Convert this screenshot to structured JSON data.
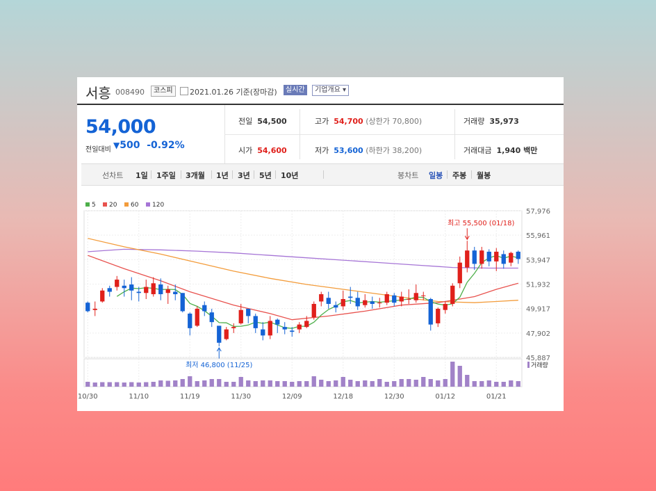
{
  "header": {
    "name": "서흥",
    "code": "008490",
    "market": "코스피",
    "date": "2021.01.26 기준(장마감)",
    "realtime": "실시간",
    "corp_info": "기업개요 ▾"
  },
  "price": {
    "current": "54,000",
    "change_label": "전일대비",
    "change_value": "500",
    "change_pct": "-0.92%"
  },
  "stats": {
    "prev_label": "전일",
    "prev": "54,500",
    "high_label": "고가",
    "high": "54,700",
    "upper_limit": "(상한가 70,800)",
    "volume_label": "거래량",
    "volume": "35,973",
    "open_label": "시가",
    "open": "54,600",
    "low_label": "저가",
    "low": "53,600",
    "lower_limit": "(하한가 38,200)",
    "amount_label": "거래대금",
    "amount": "1,940 백만"
  },
  "tabs": {
    "line_label": "선차트",
    "line_tabs": [
      "1일",
      "1주일",
      "3개월",
      "1년",
      "3년",
      "5년",
      "10년"
    ],
    "candle_label": "봉차트",
    "candle_tabs": [
      "일봉",
      "주봉",
      "월봉"
    ],
    "active_candle": "일봉"
  },
  "colors": {
    "up": "#e0201b",
    "down": "#1463d5",
    "ma5": "#4daf4a",
    "ma20": "#e8524e",
    "ma60": "#f39c3b",
    "ma120": "#a675d6",
    "volume": "#a182c8"
  },
  "chart_data": {
    "type": "candlestick",
    "legend": [
      "5",
      "20",
      "60",
      "120"
    ],
    "y_ticks": [
      "57,976",
      "55,961",
      "53,947",
      "51,932",
      "49,917",
      "47,902",
      "45,887"
    ],
    "ylim": [
      45887,
      57976
    ],
    "x_ticks": [
      {
        "label": "10/30",
        "index": 0
      },
      {
        "label": "11/10",
        "index": 7
      },
      {
        "label": "11/19",
        "index": 14
      },
      {
        "label": "11/30",
        "index": 21
      },
      {
        "label": "12/09",
        "index": 28
      },
      {
        "label": "12/18",
        "index": 35
      },
      {
        "label": "12/30",
        "index": 42
      },
      {
        "label": "01/12",
        "index": 49
      },
      {
        "label": "01/21",
        "index": 56
      }
    ],
    "candles": [
      [
        50400,
        49700,
        50500,
        49600
      ],
      [
        49800,
        49900,
        50500,
        49300
      ],
      [
        50500,
        51400,
        51600,
        50400
      ],
      [
        51600,
        51300,
        51800,
        50900
      ],
      [
        51700,
        52300,
        52600,
        51400
      ],
      [
        51800,
        51600,
        52300,
        50900
      ],
      [
        51900,
        51400,
        52500,
        50600
      ],
      [
        51300,
        51200,
        51700,
        50500
      ],
      [
        51200,
        51700,
        52300,
        50700
      ],
      [
        51100,
        52000,
        52500,
        50900
      ],
      [
        51900,
        51100,
        52400,
        50600
      ],
      [
        51200,
        51500,
        51800,
        50300
      ],
      [
        51300,
        51100,
        51900,
        50600
      ],
      [
        51200,
        49700,
        51200,
        49600
      ],
      [
        49500,
        48300,
        49600,
        47700
      ],
      [
        48500,
        49900,
        50100,
        48400
      ],
      [
        50200,
        49700,
        50500,
        49300
      ],
      [
        49600,
        48800,
        49900,
        48400
      ],
      [
        48500,
        47100,
        48500,
        46800
      ],
      [
        47400,
        48200,
        48400,
        47300
      ],
      [
        48300,
        48400,
        48700,
        47900
      ],
      [
        48700,
        49800,
        50300,
        48600
      ],
      [
        49900,
        49300,
        49900,
        48700
      ],
      [
        49300,
        48300,
        49500,
        47900
      ],
      [
        48200,
        47700,
        48800,
        47300
      ],
      [
        47700,
        48900,
        49300,
        47400
      ],
      [
        49000,
        48600,
        49100,
        47900
      ],
      [
        48400,
        48200,
        48800,
        47800
      ],
      [
        48100,
        48000,
        48400,
        47600
      ],
      [
        48200,
        48600,
        48800,
        47900
      ],
      [
        48400,
        48900,
        49300,
        48300
      ],
      [
        49200,
        50300,
        50500,
        49000
      ],
      [
        50500,
        51100,
        51300,
        50100
      ],
      [
        50800,
        50300,
        51300,
        49900
      ],
      [
        50200,
        50000,
        50500,
        49600
      ],
      [
        50100,
        50700,
        51400,
        49800
      ],
      [
        50900,
        50800,
        51700,
        50300
      ],
      [
        50800,
        50100,
        51300,
        49800
      ],
      [
        50200,
        50600,
        51100,
        50000
      ],
      [
        50500,
        50300,
        50900,
        49900
      ],
      [
        50400,
        50400,
        50800,
        50000
      ],
      [
        50400,
        51100,
        51300,
        50200
      ],
      [
        51000,
        50400,
        51200,
        50100
      ],
      [
        50500,
        50900,
        51300,
        50100
      ],
      [
        50700,
        50700,
        51500,
        50300
      ],
      [
        50600,
        51200,
        51900,
        50400
      ],
      [
        51000,
        51000,
        51300,
        50600
      ],
      [
        50700,
        48600,
        50800,
        48100
      ],
      [
        48700,
        49900,
        50000,
        48400
      ],
      [
        49800,
        50300,
        50500,
        49500
      ],
      [
        50300,
        51800,
        52000,
        50100
      ],
      [
        52000,
        53700,
        54200,
        51600
      ],
      [
        53300,
        54700,
        55500,
        52900
      ],
      [
        54700,
        53600,
        55000,
        53100
      ],
      [
        53600,
        54700,
        55000,
        53200
      ],
      [
        54600,
        53800,
        54800,
        53400
      ],
      [
        53800,
        54600,
        54900,
        53000
      ],
      [
        54400,
        53600,
        54700,
        53200
      ],
      [
        53700,
        54500,
        54600,
        53400
      ],
      [
        54600,
        54000,
        54700,
        53600
      ]
    ],
    "ma5_endpoints": "computed from closes",
    "ma20": [
      [
        0,
        54300
      ],
      [
        5,
        53200
      ],
      [
        10,
        52200
      ],
      [
        14,
        51300
      ],
      [
        20,
        50200
      ],
      [
        25,
        49500
      ],
      [
        28,
        49000
      ],
      [
        33,
        49300
      ],
      [
        38,
        49700
      ],
      [
        43,
        50200
      ],
      [
        48,
        50400
      ],
      [
        53,
        50900
      ],
      [
        56,
        51500
      ],
      [
        59,
        52000
      ]
    ],
    "ma60": [
      [
        0,
        55700
      ],
      [
        5,
        55000
      ],
      [
        10,
        54400
      ],
      [
        15,
        53700
      ],
      [
        20,
        53000
      ],
      [
        25,
        52400
      ],
      [
        30,
        51900
      ],
      [
        35,
        51500
      ],
      [
        40,
        51100
      ],
      [
        45,
        50700
      ],
      [
        48,
        50500
      ],
      [
        53,
        50400
      ],
      [
        56,
        50500
      ],
      [
        59,
        50600
      ]
    ],
    "ma120": [
      [
        0,
        54600
      ],
      [
        5,
        54800
      ],
      [
        10,
        54750
      ],
      [
        15,
        54650
      ],
      [
        20,
        54500
      ],
      [
        25,
        54300
      ],
      [
        30,
        54100
      ],
      [
        35,
        53900
      ],
      [
        40,
        53700
      ],
      [
        45,
        53500
      ],
      [
        50,
        53300
      ],
      [
        55,
        53250
      ],
      [
        59,
        53250
      ]
    ],
    "annotations": [
      {
        "text": "최고 55,500 (01/18)",
        "index": 52,
        "value": 55500,
        "kind": "high"
      },
      {
        "text": "최저 46,800 (11/25)",
        "index": 18,
        "value": 46800,
        "kind": "low"
      }
    ],
    "volume_label": "거래량",
    "volume": [
      14,
      12,
      13,
      13,
      13,
      12,
      13,
      12,
      13,
      14,
      18,
      17,
      18,
      22,
      30,
      16,
      18,
      22,
      22,
      14,
      14,
      28,
      18,
      16,
      18,
      18,
      16,
      16,
      14,
      16,
      16,
      30,
      20,
      16,
      18,
      28,
      20,
      16,
      18,
      16,
      22,
      14,
      16,
      22,
      22,
      20,
      28,
      22,
      18,
      22,
      72,
      60,
      34,
      16,
      16,
      18,
      14,
      14,
      18,
      16
    ]
  }
}
